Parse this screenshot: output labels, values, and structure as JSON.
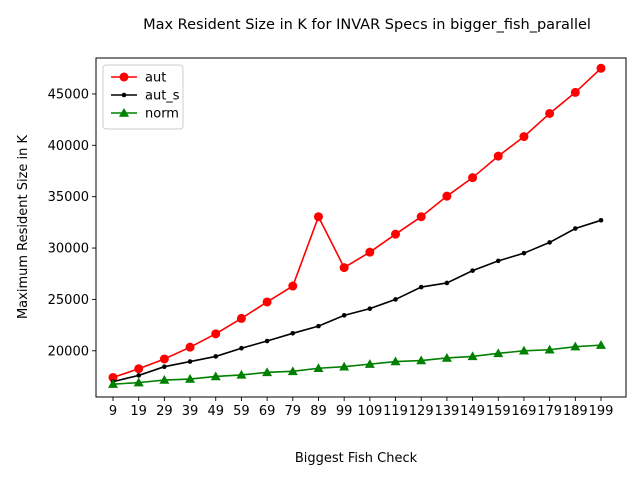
{
  "chart_data": {
    "type": "line",
    "title": "Max Resident Size in K for INVAR Specs in bigger_fish_parallel",
    "xlabel": "Biggest Fish Check",
    "ylabel": "Maximum Resident Size in K",
    "x": [
      9,
      19,
      29,
      39,
      49,
      59,
      69,
      79,
      89,
      99,
      109,
      119,
      129,
      139,
      149,
      159,
      169,
      179,
      189,
      199
    ],
    "x_tick_labels": [
      "9",
      "19",
      "29",
      "39",
      "49",
      "59",
      "69",
      "79",
      "89",
      "99",
      "109",
      "119",
      "129",
      "139",
      "149",
      "159",
      "169",
      "179",
      "189",
      "199"
    ],
    "y_ticks": [
      20000,
      25000,
      30000,
      35000,
      40000,
      45000
    ],
    "y_tick_labels": [
      "20000",
      "25000",
      "30000",
      "35000",
      "40000",
      "45000"
    ],
    "ylim": [
      15500,
      48500
    ],
    "grid": false,
    "legend_position": "top-left",
    "series": [
      {
        "name": "aut",
        "color": "#ff0000",
        "marker": "circle",
        "values": [
          17400,
          18250,
          19200,
          20350,
          21650,
          23150,
          24750,
          26300,
          33050,
          28100,
          29600,
          31350,
          33050,
          35050,
          36850,
          38950,
          40850,
          43100,
          45150,
          47500
        ]
      },
      {
        "name": "aut_s",
        "color": "#000000",
        "marker": "point",
        "values": [
          17000,
          17600,
          18450,
          18950,
          19450,
          20250,
          20950,
          21700,
          22400,
          23450,
          24100,
          25000,
          26200,
          26600,
          27800,
          28750,
          29500,
          30550,
          31900,
          32700
        ]
      },
      {
        "name": "norm",
        "color": "#008000",
        "marker": "triangle",
        "values": [
          16750,
          16900,
          17150,
          17250,
          17500,
          17650,
          17900,
          18000,
          18300,
          18450,
          18700,
          18950,
          19050,
          19300,
          19450,
          19750,
          20000,
          20100,
          20400,
          20550
        ]
      }
    ]
  }
}
